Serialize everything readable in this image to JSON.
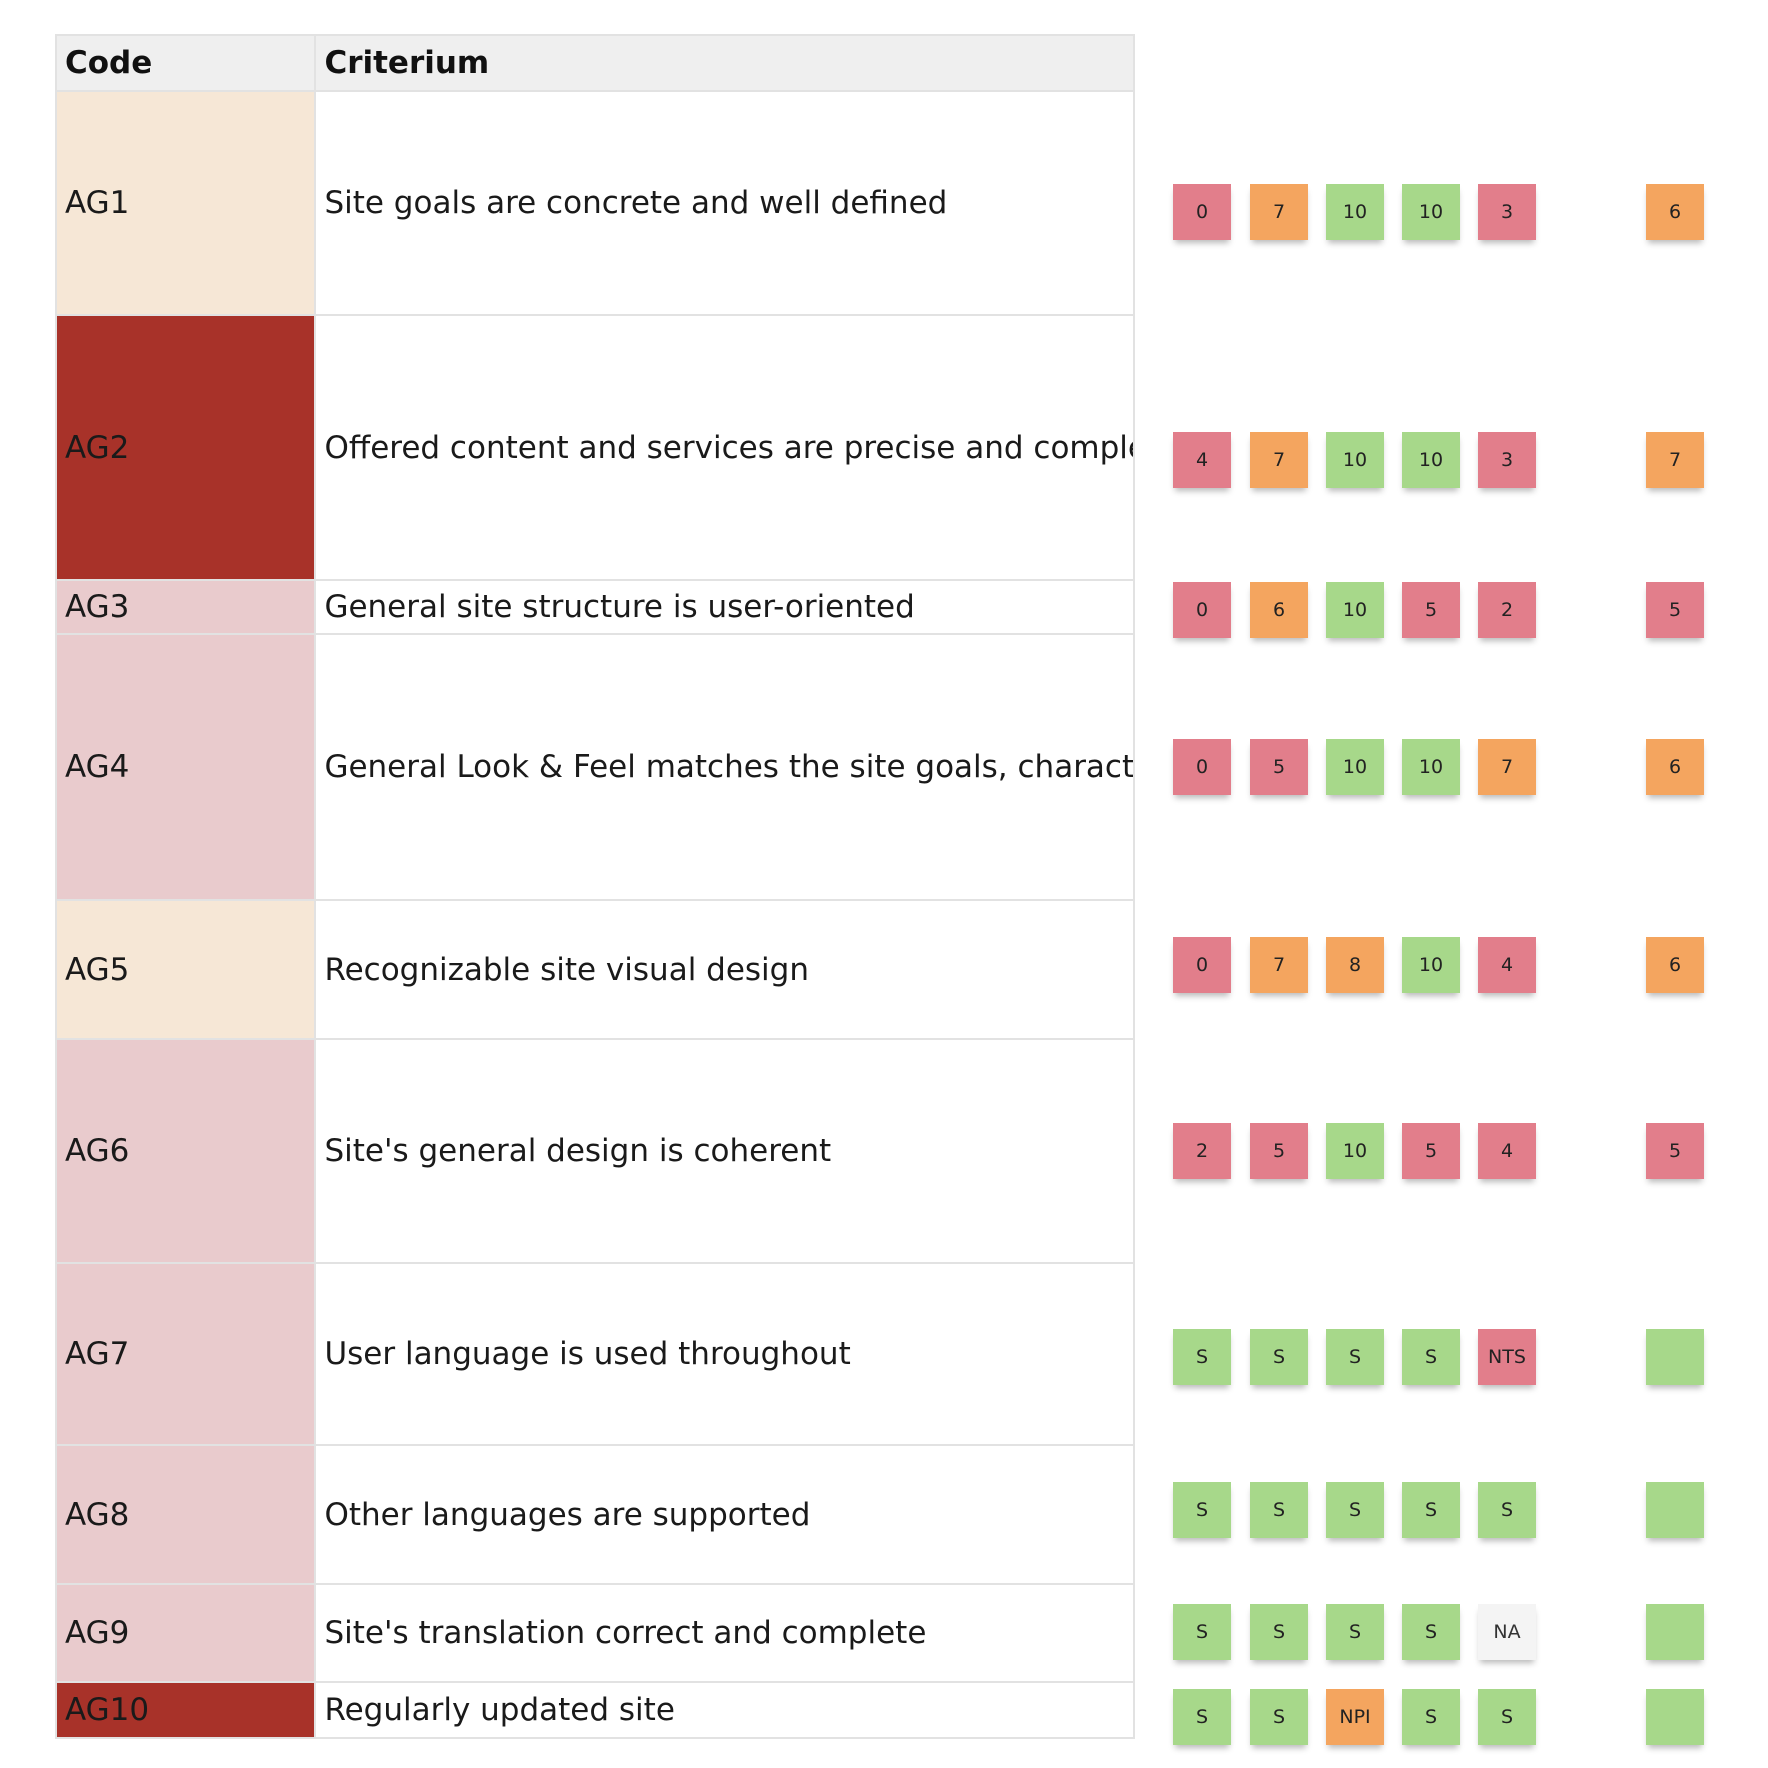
{
  "colors": {
    "header_bg": "#efefef",
    "grid": "#e2e2e2",
    "code_cream": "#f6e7d6",
    "code_red": "#a83229",
    "code_pink": "#e9cbcd",
    "note_red": "#e27e8b",
    "note_orange": "#f4a55f",
    "note_green": "#a7d88a",
    "note_white": "#f4f4f4"
  },
  "table": {
    "headers": {
      "code": "Code",
      "criterium": "Criterium"
    },
    "rows": [
      {
        "code": "AG1",
        "criterium": "Site goals are concrete and well defined",
        "code_bg": "#f6e7d6"
      },
      {
        "code": "AG2",
        "criterium": "Offered content and services are precise and complete",
        "code_bg": "#a83229"
      },
      {
        "code": "AG3",
        "criterium": "General site structure is user-oriented",
        "code_bg": "#e9cbcd"
      },
      {
        "code": "AG4",
        "criterium": "General Look & Feel matches the site goals, characteristi",
        "code_bg": "#e9cbcd"
      },
      {
        "code": "AG5",
        "criterium": "Recognizable site visual design",
        "code_bg": "#f6e7d6"
      },
      {
        "code": "AG6",
        "criterium": "Site's general design is coherent",
        "code_bg": "#e9cbcd"
      },
      {
        "code": "AG7",
        "criterium": "User language is used throughout",
        "code_bg": "#e9cbcd"
      },
      {
        "code": "AG8",
        "criterium": "Other languages are supported",
        "code_bg": "#e9cbcd"
      },
      {
        "code": "AG9",
        "criterium": "Site's translation correct and complete",
        "code_bg": "#e9cbcd"
      },
      {
        "code": "AG10",
        "criterium": "Regularly updated site",
        "code_bg": "#a83229"
      }
    ]
  },
  "notes": [
    [
      {
        "t": "0",
        "c": "red"
      },
      {
        "t": "7",
        "c": "orange"
      },
      {
        "t": "10",
        "c": "green"
      },
      {
        "t": "10",
        "c": "green"
      },
      {
        "t": "3",
        "c": "red"
      },
      {
        "t": "6",
        "c": "orange"
      }
    ],
    [
      {
        "t": "4",
        "c": "red"
      },
      {
        "t": "7",
        "c": "orange"
      },
      {
        "t": "10",
        "c": "green"
      },
      {
        "t": "10",
        "c": "green"
      },
      {
        "t": "3",
        "c": "red"
      },
      {
        "t": "7",
        "c": "orange"
      }
    ],
    [
      {
        "t": "0",
        "c": "red"
      },
      {
        "t": "6",
        "c": "orange"
      },
      {
        "t": "10",
        "c": "green"
      },
      {
        "t": "5",
        "c": "red"
      },
      {
        "t": "2",
        "c": "red"
      },
      {
        "t": "5",
        "c": "red"
      }
    ],
    [
      {
        "t": "0",
        "c": "red"
      },
      {
        "t": "5",
        "c": "red"
      },
      {
        "t": "10",
        "c": "green"
      },
      {
        "t": "10",
        "c": "green"
      },
      {
        "t": "7",
        "c": "orange"
      },
      {
        "t": "6",
        "c": "orange"
      }
    ],
    [
      {
        "t": "0",
        "c": "red"
      },
      {
        "t": "7",
        "c": "orange"
      },
      {
        "t": "8",
        "c": "orange"
      },
      {
        "t": "10",
        "c": "green"
      },
      {
        "t": "4",
        "c": "red"
      },
      {
        "t": "6",
        "c": "orange"
      }
    ],
    [
      {
        "t": "2",
        "c": "red"
      },
      {
        "t": "5",
        "c": "red"
      },
      {
        "t": "10",
        "c": "green"
      },
      {
        "t": "5",
        "c": "red"
      },
      {
        "t": "4",
        "c": "red"
      },
      {
        "t": "5",
        "c": "red"
      }
    ],
    [
      {
        "t": "S",
        "c": "green"
      },
      {
        "t": "S",
        "c": "green"
      },
      {
        "t": "S",
        "c": "green"
      },
      {
        "t": "S",
        "c": "green"
      },
      {
        "t": "NTS",
        "c": "red"
      },
      {
        "t": "",
        "c": "green"
      }
    ],
    [
      {
        "t": "S",
        "c": "green"
      },
      {
        "t": "S",
        "c": "green"
      },
      {
        "t": "S",
        "c": "green"
      },
      {
        "t": "S",
        "c": "green"
      },
      {
        "t": "S",
        "c": "green"
      },
      {
        "t": "",
        "c": "green"
      }
    ],
    [
      {
        "t": "S",
        "c": "green"
      },
      {
        "t": "S",
        "c": "green"
      },
      {
        "t": "S",
        "c": "green"
      },
      {
        "t": "S",
        "c": "green"
      },
      {
        "t": "NA",
        "c": "white"
      },
      {
        "t": "",
        "c": "green"
      }
    ],
    [
      {
        "t": "S",
        "c": "green"
      },
      {
        "t": "S",
        "c": "green"
      },
      {
        "t": "NPI",
        "c": "orange"
      },
      {
        "t": "S",
        "c": "green"
      },
      {
        "t": "S",
        "c": "green"
      },
      {
        "t": "",
        "c": "green"
      }
    ]
  ]
}
